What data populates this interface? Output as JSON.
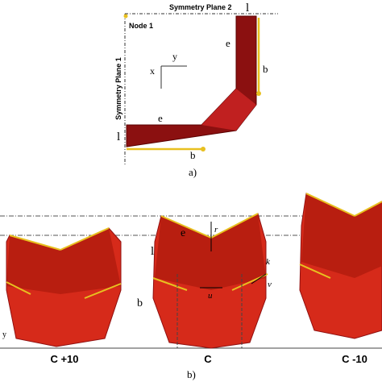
{
  "panel_a": {
    "symmetry_plane_2": "Symmetry Plane 2",
    "node": "Node 1",
    "symmetry_plane_1": "Symmetry Plane 1",
    "labels": {
      "l_top": "l",
      "e_vertical": "e",
      "b_vertical": "b",
      "e_horizontal": "e",
      "l_left": "l",
      "b_horizontal": "b"
    },
    "axes": {
      "x": "x",
      "y": "y"
    },
    "caption": "a)"
  },
  "panel_b": {
    "labels": {
      "r": "r",
      "e": "e",
      "l": "l",
      "k": "k",
      "v": "v",
      "u": "u",
      "b": "b",
      "y": "y"
    },
    "cases": [
      "C +10",
      "C",
      "C -10"
    ],
    "caption": "b)"
  }
}
